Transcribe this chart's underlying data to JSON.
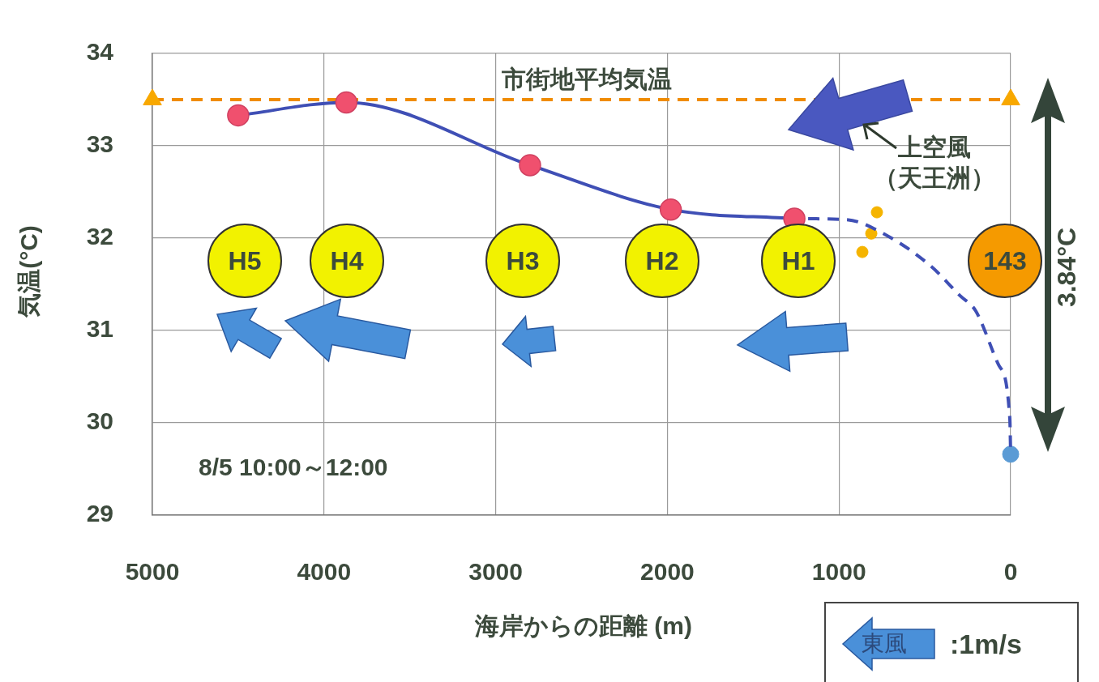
{
  "chart_data": {
    "type": "line",
    "xlabel": "海岸からの距離 (m)",
    "ylabel": "気温(°C)",
    "xlim": [
      5000,
      0
    ],
    "xticks": [
      5000,
      4000,
      3000,
      2000,
      1000,
      0
    ],
    "ylim": [
      29,
      34
    ],
    "yticks": [
      29,
      30,
      31,
      32,
      33,
      34
    ],
    "grid": true,
    "legend": false,
    "series": [
      {
        "type": "line",
        "color": "#3f4fb5",
        "colors": [
          "#f0506e",
          "#f0506e",
          "#f0506e",
          "#f0506e",
          "#f0506e"
        ],
        "marker": "circle",
        "line_style": "solid",
        "x": [
          4500,
          3870,
          2800,
          1980,
          1260
        ],
        "values": [
          33.33,
          33.47,
          32.79,
          32.31,
          32.21
        ]
      },
      {
        "type": "line",
        "color": "#3f4fb5",
        "marker": "none",
        "line_style": "dashed",
        "x": [
          1180,
          954,
          732,
          467,
          297,
          203,
          71,
          5,
          0
        ],
        "values": [
          32.21,
          32.2,
          32.04,
          31.7,
          31.38,
          31.21,
          30.63,
          30.05,
          29.66
        ]
      },
      {
        "type": "scatter",
        "color": "#f5b400",
        "marker": "circle",
        "x": [
          779,
          812,
          864
        ],
        "values": [
          32.28,
          32.05,
          31.85
        ]
      },
      {
        "type": "scatter",
        "color": "#5b9bd5",
        "marker": "circle",
        "x": [
          0
        ],
        "values": [
          29.66
        ]
      },
      {
        "type": "scatter",
        "color": "#f8a800",
        "marker": "triangle",
        "x": [
          5000,
          0
        ],
        "values": [
          33.5,
          33.5
        ]
      }
    ],
    "ref_lines": [
      {
        "axis": "y",
        "value": 33.5,
        "label": "市街地平均気温",
        "color": "#f08c00",
        "line_style": "dashed"
      }
    ],
    "annotations": [
      "8/5 10:00～12:00",
      "上空風",
      "（天王洲）",
      "3.84°C",
      "東風",
      ":1m/s",
      "H5",
      "H4",
      "H3",
      "H2",
      "H1",
      "143"
    ]
  }
}
